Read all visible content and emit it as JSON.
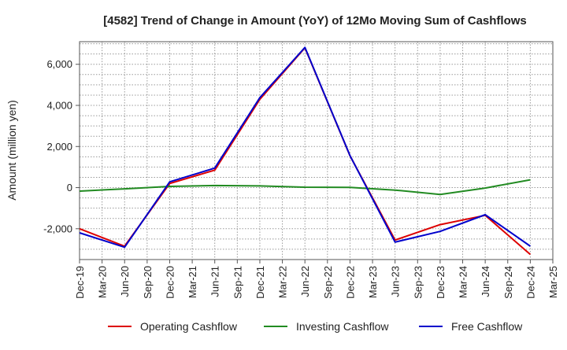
{
  "chart_data": {
    "type": "line",
    "title": "[4582]  Trend of Change in Amount (YoY) of 12Mo Moving Sum of Cashflows",
    "xlabel": "",
    "ylabel": "Amount (million yen)",
    "ylim": [
      -3500,
      7100
    ],
    "yticks": [
      -2000,
      0,
      2000,
      4000,
      6000
    ],
    "ytick_labels": [
      "-2,000",
      "0",
      "2,000",
      "4,000",
      "6,000"
    ],
    "categories": [
      "Dec-19",
      "Mar-20",
      "Jun-20",
      "Sep-20",
      "Dec-20",
      "Mar-21",
      "Jun-21",
      "Sep-21",
      "Dec-21",
      "Mar-22",
      "Jun-22",
      "Sep-22",
      "Dec-22",
      "Mar-23",
      "Jun-23",
      "Sep-23",
      "Dec-23",
      "Mar-24",
      "Jun-24",
      "Sep-24",
      "Dec-24",
      "Mar-25"
    ],
    "grid": true,
    "legend_position": "bottom",
    "series": [
      {
        "name": "Operating Cashflow",
        "color": "#dd0000",
        "points": [
          [
            0,
            -2000
          ],
          [
            2,
            -2850
          ],
          [
            4,
            200
          ],
          [
            6,
            850
          ],
          [
            8,
            4300
          ],
          [
            10,
            6800
          ],
          [
            12,
            1550
          ],
          [
            14,
            -2550
          ],
          [
            16,
            -1800
          ],
          [
            18,
            -1350
          ],
          [
            20,
            -3250
          ]
        ]
      },
      {
        "name": "Investing Cashflow",
        "color": "#228b22",
        "points": [
          [
            0,
            -170
          ],
          [
            2,
            -60
          ],
          [
            4,
            60
          ],
          [
            6,
            100
          ],
          [
            8,
            80
          ],
          [
            10,
            20
          ],
          [
            12,
            10
          ],
          [
            14,
            -120
          ],
          [
            16,
            -330
          ],
          [
            18,
            -20
          ],
          [
            20,
            380
          ]
        ]
      },
      {
        "name": "Free Cashflow",
        "color": "#0000cc",
        "points": [
          [
            0,
            -2200
          ],
          [
            2,
            -2900
          ],
          [
            4,
            280
          ],
          [
            6,
            950
          ],
          [
            8,
            4380
          ],
          [
            10,
            6820
          ],
          [
            12,
            1560
          ],
          [
            14,
            -2650
          ],
          [
            16,
            -2130
          ],
          [
            18,
            -1320
          ],
          [
            20,
            -2850
          ]
        ]
      }
    ]
  }
}
